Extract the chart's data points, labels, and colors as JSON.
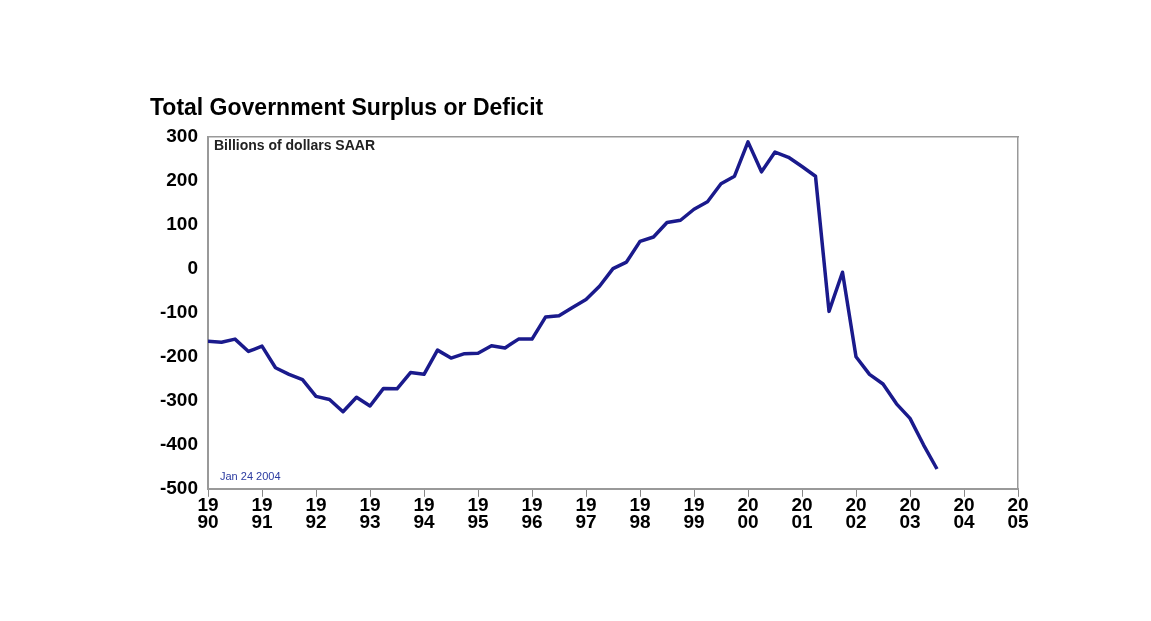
{
  "chart_data": {
    "type": "line",
    "title": "Total Government Surplus or Deficit",
    "subtitle": "Billions of dollars SAAR",
    "annotations": [
      "Jan 24 2004"
    ],
    "x": [
      1990,
      1990.25,
      1990.5,
      1990.75,
      1991,
      1991.25,
      1991.5,
      1991.75,
      1992,
      1992.25,
      1992.5,
      1992.75,
      1993,
      1993.25,
      1993.5,
      1993.75,
      1994,
      1994.25,
      1994.5,
      1994.75,
      1995,
      1995.25,
      1995.5,
      1995.75,
      1996,
      1996.25,
      1996.5,
      1996.75,
      1997,
      1997.25,
      1997.5,
      1997.75,
      1998,
      1998.25,
      1998.5,
      1998.75,
      1999,
      1999.25,
      1999.5,
      1999.75,
      2000,
      2000.25,
      2000.5,
      2000.75,
      2001,
      2001.25,
      2001.5,
      2001.75,
      2002,
      2002.25,
      2002.5,
      2002.75,
      2003,
      2003.25,
      2003.5
    ],
    "series": [
      {
        "color": "#1a1a8c",
        "values": [
          -165,
          -167,
          -160,
          -188,
          -176,
          -225,
          -240,
          -252,
          -290,
          -297,
          -325,
          -292,
          -312,
          -272,
          -273,
          -236,
          -240,
          -185,
          -203,
          -193,
          -192,
          -175,
          -180,
          -160,
          -160,
          -110,
          -107,
          -88,
          -70,
          -40,
          0,
          15,
          62,
          72,
          105,
          110,
          135,
          152,
          193,
          210,
          288,
          220,
          265,
          253,
          232,
          210,
          -97,
          -8,
          -200,
          -240,
          -262,
          -307,
          -340,
          -400,
          -455
        ]
      }
    ],
    "xlim": [
      1990,
      2005
    ],
    "xticks": [
      1990,
      1991,
      1992,
      1993,
      1994,
      1995,
      1996,
      1997,
      1998,
      1999,
      2000,
      2001,
      2002,
      2003,
      2004,
      2005
    ],
    "ylim": [
      -500,
      300
    ],
    "yticks": [
      -500,
      -400,
      -300,
      -200,
      -100,
      0,
      100,
      200,
      300
    ],
    "grid": false,
    "legend": false,
    "marker": "none",
    "line_style": "solid"
  }
}
